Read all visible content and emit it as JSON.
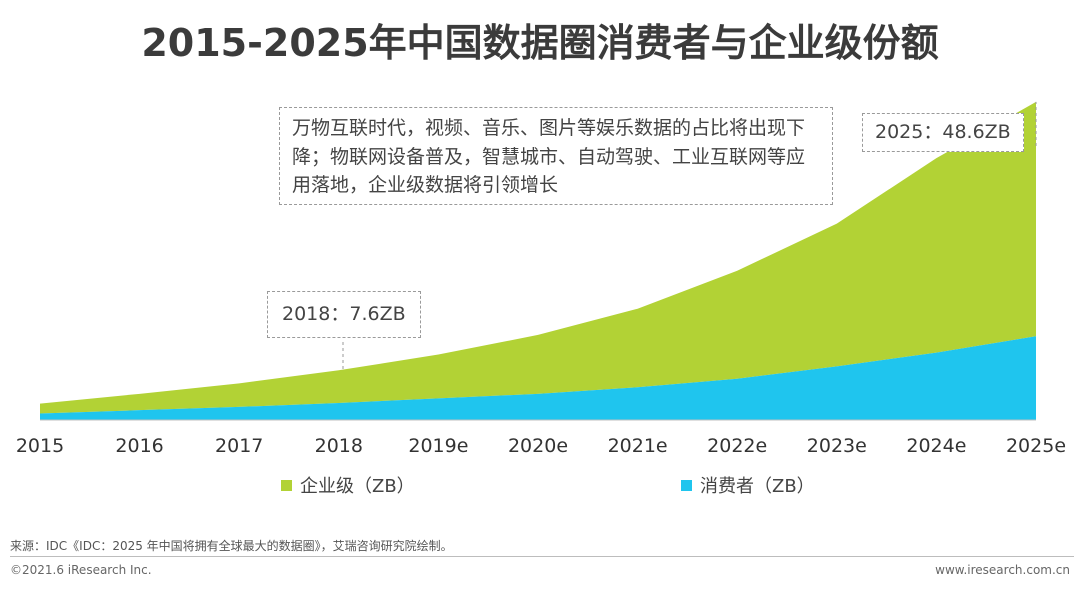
{
  "chart_data": {
    "type": "area",
    "title": "2015-2025年中国数据圈消费者与企业级份额",
    "categories": [
      "2015",
      "2016",
      "2017",
      "2018",
      "2019e",
      "2020e",
      "2021e",
      "2022e",
      "2023e",
      "2024e",
      "2025e"
    ],
    "series": [
      {
        "name": "消费者（ZB）",
        "values": [
          1.0,
          1.5,
          2.0,
          2.6,
          3.3,
          4.0,
          5.0,
          6.3,
          8.2,
          10.3,
          12.8
        ]
      },
      {
        "name": "企业级（ZB）",
        "values": [
          1.5,
          2.5,
          3.6,
          5.0,
          6.7,
          9.0,
          12.0,
          16.5,
          21.8,
          29.7,
          35.8
        ]
      }
    ],
    "stacked": true,
    "ylim": [
      0,
      55
    ],
    "legend_position": "bottom",
    "annotations": {
      "main": "万物互联时代，视频、音乐、图片等娱乐数据的占比将出现下降；物联网设备普及，智慧城市、自动驾驶、工业互联网等应用落地，企业级数据将引领增长",
      "label_2025": "2025：48.6ZB",
      "label_2018": "2018：7.6ZB"
    },
    "colors": {
      "enterprise": "#b2d235",
      "consumer": "#1fc5ee"
    }
  },
  "footer": {
    "source": "来源：IDC《IDC：2025 年中国将拥有全球最大的数据圈》，艾瑞咨询研究院绘制。",
    "copyright": "©2021.6 iResearch Inc.",
    "website": "www.iresearch.com.cn"
  }
}
